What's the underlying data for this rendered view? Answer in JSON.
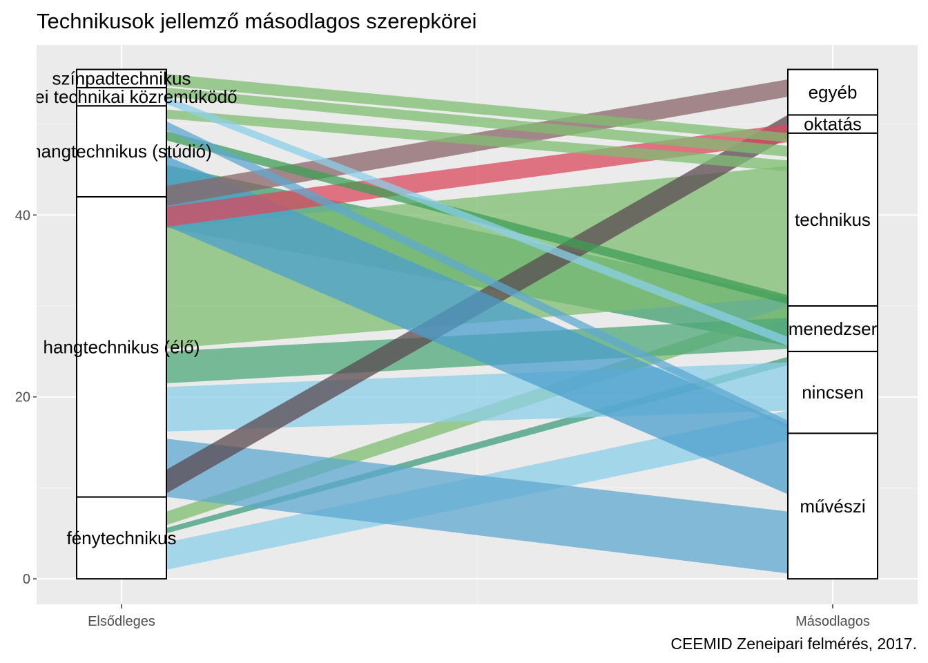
{
  "chart_data": {
    "type": "alluvial",
    "title": "Technikusok jellemző másodlagos szerepkörei",
    "caption": "CEEMID Zeneipari felmérés, 2017.",
    "xlabel": "",
    "ylabel": "",
    "ylim": [
      -2.8,
      58.7
    ],
    "yticks": [
      0,
      20,
      40
    ],
    "ytick_labels": [
      "0",
      "20",
      "40"
    ],
    "grid": true,
    "axes": [
      "Elsődleges",
      "Másodlagos"
    ],
    "strata": {
      "Elsődleges": [
        {
          "label": "fénytechnikus",
          "from": 0,
          "to": 9
        },
        {
          "label": "hangtechnikus (élő)",
          "from": 9,
          "to": 42
        },
        {
          "label": "hangtechnikus (stúdió)",
          "from": 42,
          "to": 52
        },
        {
          "label": "zenei technikai közreműködő",
          "from": 52,
          "to": 54
        },
        {
          "label": "színpadtechnikus",
          "from": 54,
          "to": 56
        }
      ],
      "Másodlagos": [
        {
          "label": "művészi",
          "from": 0,
          "to": 16
        },
        {
          "label": "nincsen",
          "from": 16,
          "to": 25
        },
        {
          "label": "menedzser",
          "from": 25,
          "to": 30
        },
        {
          "label": "technikus",
          "from": 30,
          "to": 49
        },
        {
          "label": "oktatás",
          "from": 49,
          "to": 51
        },
        {
          "label": "egyéb",
          "from": 51,
          "to": 56
        }
      ]
    },
    "flows": [
      {
        "from": "hangtechnikus (stúdió)",
        "to": "menedzser",
        "left": [
          38.6,
          45.5
        ],
        "right": [
          25.6,
          31.0
        ],
        "color": "#3f9e6e"
      },
      {
        "from": "fénytechnikus",
        "to": "nincsen",
        "left": [
          1.0,
          4.0
        ],
        "right": [
          15.2,
          18.5
        ],
        "color": "#8ccfe8"
      },
      {
        "from": "fénytechnikus",
        "to": "nincsen",
        "left": [
          5.0,
          5.6
        ],
        "right": [
          23.5,
          24.4
        ],
        "color": "#3f9e7e"
      },
      {
        "from": "fénytechnikus",
        "to": "menedzser",
        "left": [
          5.9,
          7.4
        ],
        "right": [
          28.5,
          30.0
        ],
        "color": "#7fbd72"
      },
      {
        "from": "hangtechnikus (élő)",
        "to": "művészi",
        "left": [
          9.0,
          15.4
        ],
        "right": [
          0.6,
          7.4
        ],
        "color": "#5ea8cf"
      },
      {
        "from": "hangtechnikus (élő)",
        "to": "nincsen",
        "left": [
          16.2,
          21.1
        ],
        "right": [
          18.5,
          23.8
        ],
        "color": "#8ccfe8"
      },
      {
        "from": "hangtechnikus (élő)",
        "to": "menedzser",
        "left": [
          21.5,
          25.0
        ],
        "right": [
          25.3,
          28.7
        ],
        "color": "#4fa87a"
      },
      {
        "from": "hangtechnikus (élő)",
        "to": "technikus",
        "left": [
          25.3,
          38.6
        ],
        "right": [
          31.0,
          45.4
        ],
        "color": "#7fbd72"
      },
      {
        "from": "hangtechnikus (élő)",
        "to": "egyéb",
        "left": [
          9.4,
          12.0
        ],
        "right": [
          48.5,
          51.0
        ],
        "color": "#5a4a50"
      },
      {
        "from": "hangtechnikus (stúdió)",
        "to": "művészi",
        "left": [
          38.8,
          46.5
        ],
        "right": [
          9.3,
          17.0
        ],
        "color": "#4b9fcc"
      },
      {
        "from": "hangtechnikus (stúdió)",
        "to": "oktatás",
        "left": [
          38.7,
          40.9
        ],
        "right": [
          48.0,
          50.0
        ],
        "color": "#d94a5e"
      },
      {
        "from": "hangtechnikus (stúdió)",
        "to": "egyéb",
        "left": [
          41.0,
          43.2
        ],
        "right": [
          53.0,
          54.9
        ],
        "color": "#8a6468"
      },
      {
        "from": "hangtechnikus (stúdió)",
        "to": "technikus",
        "left": [
          48.2,
          49.2
        ],
        "right": [
          30.2,
          31.2
        ],
        "color": "#3f9e55"
      },
      {
        "from": "hangtechnikus (stúdió)",
        "to": "nincsen",
        "left": [
          49.3,
          50.3
        ],
        "right": [
          16.5,
          17.4
        ],
        "color": "#5ea8cf"
      },
      {
        "from": "hangtechnikus (stúdió)",
        "to": "technikus",
        "left": [
          50.6,
          51.6
        ],
        "right": [
          44.8,
          46.0
        ],
        "color": "#7fbd72"
      },
      {
        "from": "zenei technikai közreműködő",
        "to": "nincsen",
        "left": [
          52.2,
          53.0
        ],
        "right": [
          25.6,
          26.6
        ],
        "color": "#8ccfe8"
      },
      {
        "from": "zenei technikai közreműködő",
        "to": "technikus",
        "left": [
          53.0,
          54.0
        ],
        "right": [
          46.4,
          47.6
        ],
        "color": "#7fbd72"
      },
      {
        "from": "színpadtechnikus",
        "to": "technikus",
        "left": [
          54.2,
          55.5
        ],
        "right": [
          48.0,
          49.0
        ],
        "color": "#7fbd72"
      }
    ]
  }
}
